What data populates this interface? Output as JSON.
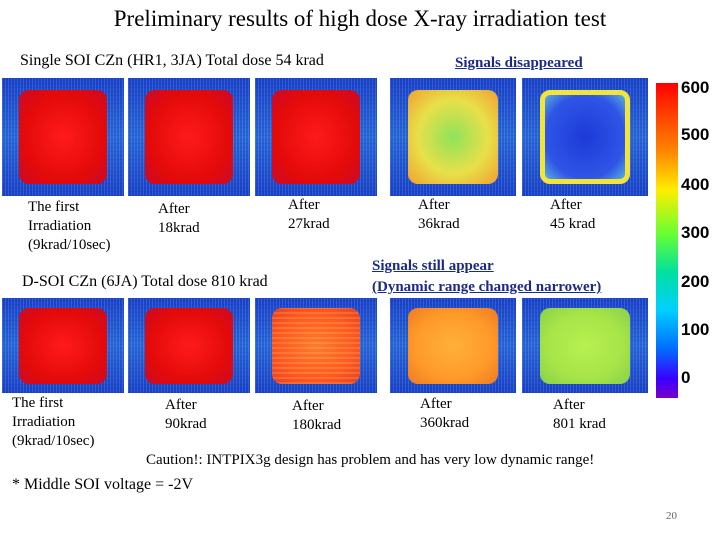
{
  "title": "Preliminary results of high dose X-ray irradiation test",
  "row1": {
    "heading": "Single SOI CZn (HR1, 3JA) Total dose 54 krad",
    "note": "Signals disappeared",
    "labels": [
      [
        "The first",
        "Irradiation",
        "(9krad/10sec)"
      ],
      [
        "After",
        "18krad"
      ],
      [
        "After",
        "27krad"
      ],
      [
        "After",
        "36krad"
      ],
      [
        "After",
        "45 krad"
      ]
    ]
  },
  "row2": {
    "heading": "D-SOI CZn (6JA) Total dose 810 krad",
    "note_line1": "Signals still appear",
    "note_line2": "(Dynamic range changed narrower)",
    "labels": [
      [
        "The first",
        "Irradiation",
        "(9krad/10sec)"
      ],
      [
        "After",
        "90krad"
      ],
      [
        "After",
        "180krad"
      ],
      [
        "After",
        "360krad"
      ],
      [
        "After",
        "801 krad"
      ]
    ]
  },
  "colorbar": {
    "ticks": [
      "600",
      "500",
      "400",
      "300",
      "200",
      "100",
      "0"
    ]
  },
  "caution": "Caution!: INTPIX3g design has problem and has very low dynamic range!",
  "footnote": "* Middle SOI voltage = -2V",
  "page_number": "20"
}
